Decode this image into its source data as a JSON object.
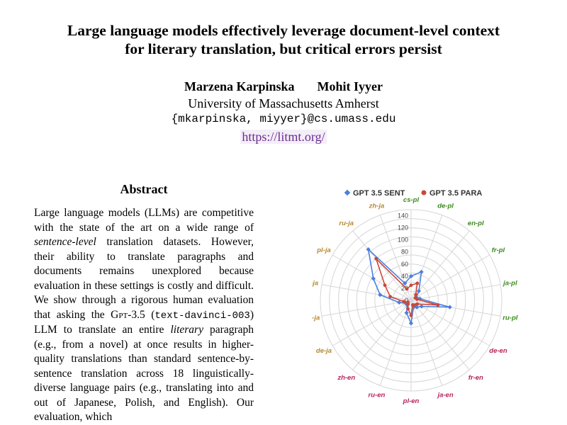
{
  "paper": {
    "title_line1": "Large language models effectively leverage document-level context",
    "title_line2": "for literary translation, but critical errors persist",
    "author1": "Marzena Karpinska",
    "author2": "Mohit Iyyer",
    "affiliation": "University of Massachusetts Amherst",
    "email": "{mkarpinska, miyyer}@cs.umass.edu",
    "url": "https://litmt.org/"
  },
  "abstract": {
    "heading": "Abstract",
    "t1": "Large language models (LLMs) are competitive with the state of the art on a wide range of ",
    "t2": "sentence-level",
    "t3": " translation datasets. However, their ability to translate paragraphs and documents remains unexplored because evaluation in these settings is costly and difficult. We show through a rigorous human evaluation that asking the ",
    "t4": "Gpt",
    "t5": "-3.5 (",
    "t6": "text-davinci-003",
    "t7": ") LLM to translate an entire ",
    "t8": "literary",
    "t9": " paragraph (e.g., from a novel) at once results in higher-quality translations than standard sentence-by-sentence translation across 18 linguistically-diverse language pairs (e.g., translating into and out of Japanese, Polish, and English). Our evaluation, which"
  },
  "chart_data": {
    "type": "radar",
    "legend_position": "top",
    "categories": [
      "cs-pl",
      "de-pl",
      "en-pl",
      "fr-pl",
      "ja-pl",
      "ru-pl",
      "de-en",
      "fr-en",
      "ja-en",
      "pl-en",
      "ru-en",
      "zh-en",
      "de-ja",
      "en-ja",
      "fr-ja",
      "pl-ja",
      "ru-ja",
      "zh-ja"
    ],
    "category_colors": [
      "#3c8a1e",
      "#3c8a1e",
      "#3c8a1e",
      "#3c8a1e",
      "#3c8a1e",
      "#3c8a1e",
      "#b5245c",
      "#b5245c",
      "#b5245c",
      "#b5245c",
      "#b5245c",
      "#b5245c",
      "#b68a2e",
      "#b68a2e",
      "#b68a2e",
      "#b68a2e",
      "#b68a2e",
      "#b68a2e"
    ],
    "r_ticks": [
      "0",
      "20",
      "40",
      "60",
      "80",
      "100",
      "120",
      "140"
    ],
    "r_range": [
      0,
      150
    ],
    "series": [
      {
        "name": "GPT 3.5 SENT",
        "color": "#4a7fe0",
        "marker": "diamond",
        "values": [
          40,
          50,
          20,
          10,
          15,
          65,
          20,
          15,
          12,
          38,
          22,
          10,
          10,
          20,
          52,
          72,
          110,
          30
        ]
      },
      {
        "name": "GPT 3.5 PARA",
        "color": "#c9483c",
        "marker": "circle",
        "values": [
          25,
          30,
          12,
          8,
          10,
          45,
          12,
          10,
          8,
          25,
          15,
          8,
          6,
          12,
          35,
          50,
          90,
          20
        ]
      }
    ]
  }
}
